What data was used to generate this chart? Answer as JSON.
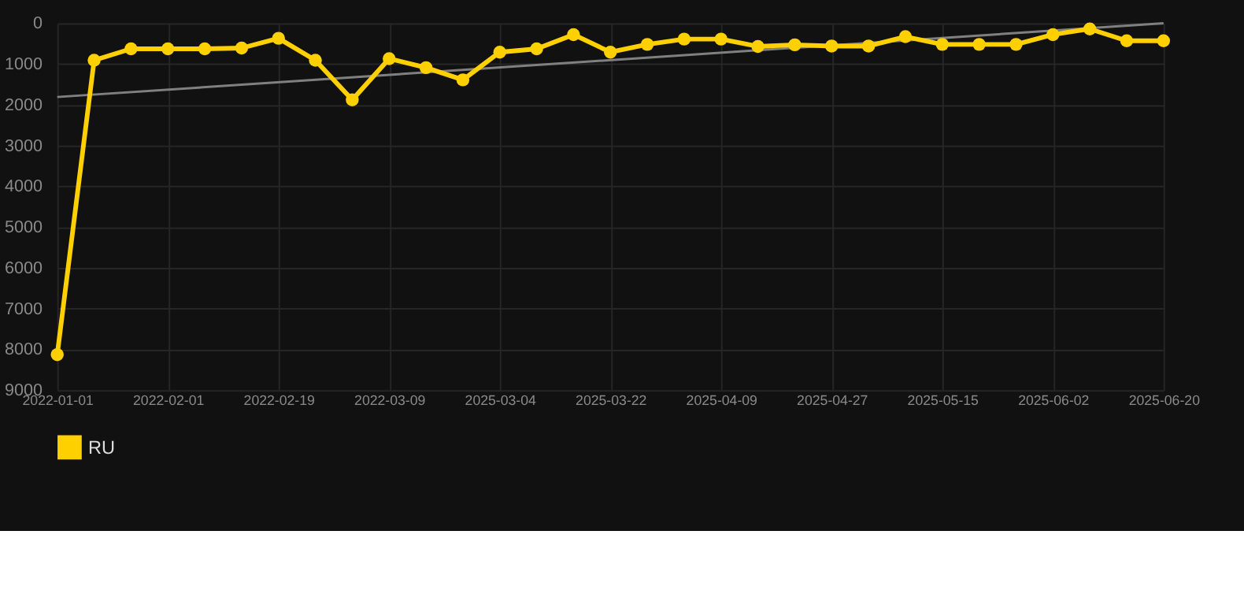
{
  "chart_data": {
    "type": "line",
    "categories": [
      "2022-01-01",
      null,
      null,
      "2022-02-01",
      null,
      null,
      "2022-02-19",
      null,
      null,
      "2022-03-09",
      null,
      null,
      "2025-03-04",
      null,
      null,
      "2025-03-22",
      null,
      null,
      "2025-04-09",
      null,
      null,
      "2025-04-27",
      null,
      null,
      "2025-05-15",
      null,
      null,
      "2025-06-02",
      null,
      null,
      "2025-06-20"
    ],
    "series": [
      {
        "name": "RU",
        "color": "#ffd000",
        "marker": "circle",
        "values": [
          8130,
          910,
          630,
          630,
          630,
          610,
          370,
          910,
          1880,
          870,
          1090,
          1390,
          710,
          630,
          280,
          710,
          520,
          390,
          390,
          570,
          530,
          560,
          560,
          330,
          520,
          520,
          520,
          280,
          140,
          430,
          430
        ]
      },
      {
        "color": "#808080",
        "marker": "none",
        "values": [
          1810,
          null,
          null,
          null,
          null,
          null,
          null,
          null,
          null,
          null,
          null,
          null,
          null,
          null,
          null,
          null,
          null,
          null,
          null,
          null,
          null,
          null,
          null,
          null,
          null,
          null,
          null,
          null,
          null,
          null,
          0
        ]
      }
    ],
    "ylim": [
      9000,
      0
    ],
    "yticks": [
      0,
      1000,
      2000,
      3000,
      4000,
      5000,
      6000,
      7000,
      8000,
      9000
    ],
    "grid": true,
    "legend": "bottom"
  }
}
